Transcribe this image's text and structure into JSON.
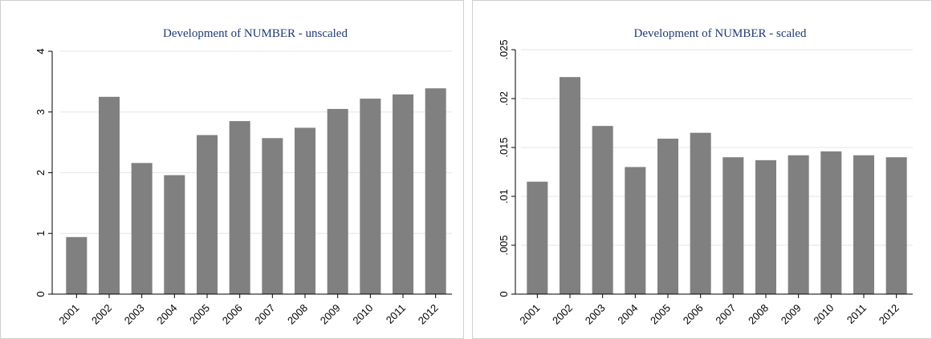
{
  "chart_data": [
    {
      "type": "bar",
      "title": "Development of NUMBER - unscaled",
      "xlabel": "",
      "ylabel": "",
      "categories": [
        "2001",
        "2002",
        "2003",
        "2004",
        "2005",
        "2006",
        "2007",
        "2008",
        "2009",
        "2010",
        "2011",
        "2012"
      ],
      "values": [
        0.94,
        3.25,
        2.16,
        1.96,
        2.62,
        2.85,
        2.57,
        2.74,
        3.05,
        3.22,
        3.29,
        3.39
      ],
      "ylim": [
        0,
        4
      ],
      "yticks": [
        0,
        1,
        2,
        3,
        4
      ],
      "ytick_labels": [
        "0",
        "1",
        "2",
        "3",
        "4"
      ],
      "grid": true,
      "bar_color": "#808080",
      "grid_color": "#e6e6e6",
      "title_color": "#1f3a78"
    },
    {
      "type": "bar",
      "title": "Development of NUMBER - scaled",
      "xlabel": "",
      "ylabel": "",
      "categories": [
        "2001",
        "2002",
        "2003",
        "2004",
        "2005",
        "2006",
        "2007",
        "2008",
        "2009",
        "2010",
        "2011",
        "2012"
      ],
      "values": [
        0.0115,
        0.0222,
        0.0172,
        0.013,
        0.0159,
        0.0165,
        0.014,
        0.0137,
        0.0142,
        0.0146,
        0.0142,
        0.014
      ],
      "ylim": [
        0,
        0.025
      ],
      "yticks": [
        0,
        0.005,
        0.01,
        0.015,
        0.02,
        0.025
      ],
      "ytick_labels": [
        "0",
        ".005",
        ".01",
        ".015",
        ".02",
        ".025"
      ],
      "grid": true,
      "bar_color": "#808080",
      "grid_color": "#e6e6e6",
      "title_color": "#1f3a78"
    }
  ]
}
